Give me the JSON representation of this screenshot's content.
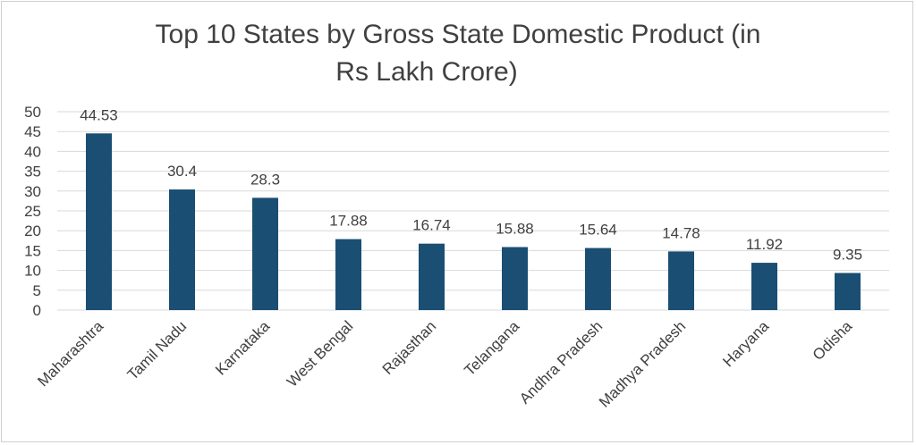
{
  "chart_data": {
    "type": "bar",
    "title_line1": "Top 10 States by Gross State Domestic Product (in",
    "title_line2": "Rs Lakh Crore)",
    "categories": [
      "Maharashtra",
      "Tamil Nadu",
      "Karnataka",
      "West Bengal",
      "Rajasthan",
      "Telangana",
      "Andhra Pradesh",
      "Madhya Pradesh",
      "Haryana",
      "Odisha"
    ],
    "values": [
      44.53,
      30.4,
      28.3,
      17.88,
      16.74,
      15.88,
      15.64,
      14.78,
      11.92,
      9.35
    ],
    "value_labels": [
      "44.53",
      "30.4",
      "28.3",
      "17.88",
      "16.74",
      "15.88",
      "15.64",
      "14.78",
      "11.92",
      "9.35"
    ],
    "yticks": [
      "0",
      "5",
      "10",
      "15",
      "20",
      "25",
      "30",
      "35",
      "40",
      "45",
      "50"
    ],
    "ylim": [
      0,
      50
    ],
    "xlabel": "",
    "ylabel": "",
    "grid": true,
    "legend": "none",
    "bar_color": "#1a4e72",
    "grid_color": "#d9d9d9"
  }
}
